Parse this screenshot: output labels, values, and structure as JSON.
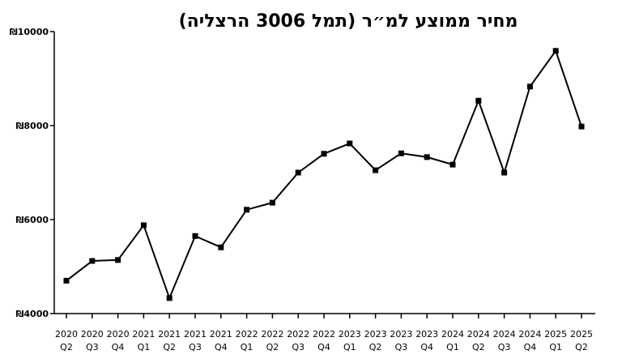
{
  "chart_data": {
    "type": "line",
    "title": "מחיר ממוצע למ״ר (תמל 3006 הרצליה)",
    "categories": [
      "2020 Q2",
      "2020 Q3",
      "2020 Q4",
      "2021 Q1",
      "2021 Q2",
      "2021 Q3",
      "2021 Q4",
      "2022 Q1",
      "2022 Q2",
      "2022 Q3",
      "2022 Q4",
      "2023 Q1",
      "2023 Q2",
      "2023 Q3",
      "2023 Q4",
      "2024 Q1",
      "2024 Q2",
      "2024 Q3",
      "2024 Q4",
      "2025 Q1",
      "2025 Q2"
    ],
    "series": [
      {
        "color": "#000000",
        "values": [
          4700,
          5120,
          5140,
          5880,
          4330,
          5650,
          5410,
          6210,
          6360,
          7000,
          7400,
          7620,
          7050,
          7410,
          7330,
          7170,
          8530,
          7000,
          8830,
          9590,
          7980
        ]
      }
    ],
    "ylim": [
      4000,
      10000
    ],
    "yticks": [
      {
        "value": 4000,
        "label": "₪4000"
      },
      {
        "value": 6000,
        "label": "₪6000"
      },
      {
        "value": 8000,
        "label": "₪8000"
      },
      {
        "value": 10000,
        "label": "₪10000"
      }
    ],
    "grid": false
  }
}
